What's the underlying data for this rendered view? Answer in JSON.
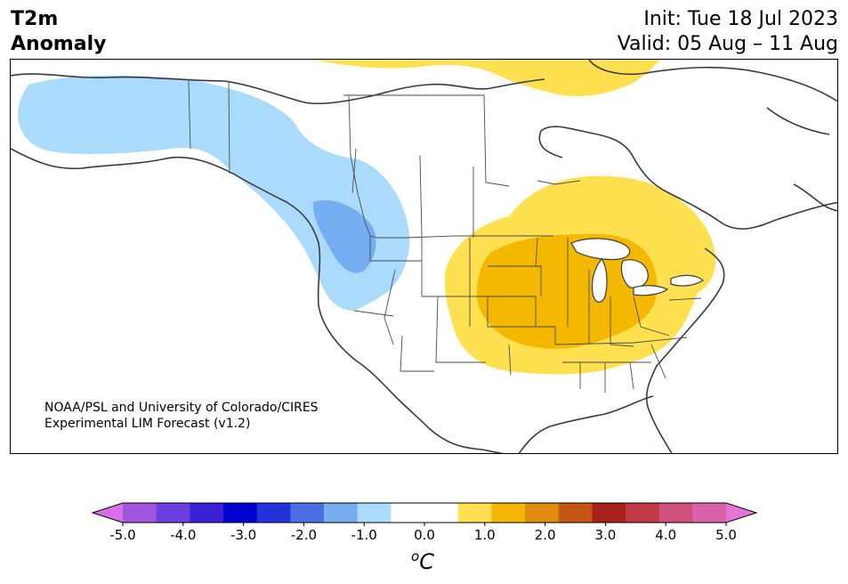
{
  "title": {
    "line1": "T2m",
    "line2": "Anomaly"
  },
  "dates": {
    "init": "Init: Tue 18 Jul 2023",
    "valid": "Valid: 05 Aug – 11 Aug"
  },
  "credit": {
    "line1": "NOAA/PSL and University of Colorado/CIRES",
    "line2": "Experimental LIM Forecast (v1.2)"
  },
  "colorbar": {
    "colors": [
      "#d86fe6",
      "#a156e0",
      "#6d3ee0",
      "#3a21d6",
      "#0000d0",
      "#2333dc",
      "#4a6ee3",
      "#74aef1",
      "#abdbfc",
      "#ffffff",
      "#ffffff",
      "#ffe050",
      "#f5b800",
      "#e08a10",
      "#c65614",
      "#a8201a",
      "#c13a4a",
      "#d0527a",
      "#db62a8",
      "#e775d8"
    ],
    "tick_labels": [
      "-5.0",
      "-4.0",
      "-3.0",
      "-2.0",
      "-1.0",
      "0.0",
      "1.0",
      "2.0",
      "3.0",
      "4.0",
      "5.0"
    ],
    "unit_sup": "o",
    "unit_main": "C"
  },
  "anomaly_colors": {
    "cold1": "#abdbfc",
    "cold2": "#74aef1",
    "warm1": "#ffe050",
    "warm2": "#f5b800"
  }
}
